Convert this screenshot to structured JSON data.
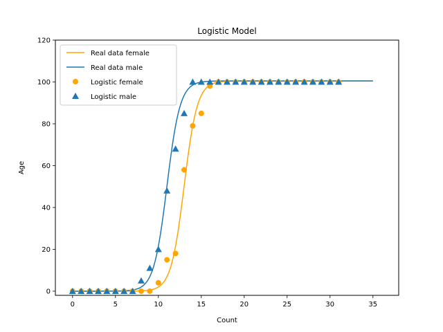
{
  "chart_data": {
    "type": "line+scatter",
    "title": "Logistic Model",
    "xlabel": "Count",
    "ylabel": "Age",
    "xlim": [
      -2,
      38
    ],
    "ylim": [
      -2,
      120
    ],
    "xticks": [
      0,
      5,
      10,
      15,
      20,
      25,
      30,
      35
    ],
    "yticks": [
      0,
      20,
      40,
      60,
      80,
      100,
      120
    ],
    "legend_position": "top-left",
    "colors": {
      "female": "#ffa500",
      "male": "#1f77b4",
      "axis": "#000000",
      "background": "#ffffff"
    },
    "curves": [
      {
        "name": "Real data female",
        "color": "#ffa500",
        "L": 100.5,
        "k": 1.3,
        "x0": 13.0,
        "x_range": [
          0,
          35
        ]
      },
      {
        "name": "Real data male",
        "color": "#1f77b4",
        "L": 100.5,
        "k": 1.3,
        "x0": 11.0,
        "x_range": [
          0,
          35
        ]
      }
    ],
    "scatter": [
      {
        "name": "Logistic female",
        "color": "#ffa500",
        "marker": "circle",
        "x": [
          0,
          1,
          2,
          3,
          4,
          5,
          6,
          7,
          8,
          9,
          10,
          11,
          12,
          13,
          14,
          15,
          16,
          17,
          18,
          19,
          20,
          21,
          22,
          23,
          24,
          25,
          26,
          27,
          28,
          29,
          30,
          31
        ],
        "y": [
          0,
          0,
          0,
          0,
          0,
          0,
          0,
          0,
          0,
          0,
          4,
          15,
          18,
          58,
          79,
          85,
          98,
          100,
          100,
          100,
          100,
          100,
          100,
          100,
          100,
          100,
          100,
          100,
          100,
          100,
          100,
          100
        ]
      },
      {
        "name": "Logistic male",
        "color": "#1f77b4",
        "marker": "triangle",
        "x": [
          0,
          1,
          2,
          3,
          4,
          5,
          6,
          7,
          8,
          9,
          10,
          11,
          12,
          13,
          14,
          15,
          16,
          17,
          18,
          19,
          20,
          21,
          22,
          23,
          24,
          25,
          26,
          27,
          28,
          29,
          30,
          31
        ],
        "y": [
          0,
          0,
          0,
          0,
          0,
          0,
          0,
          0,
          5,
          11,
          20,
          48,
          68,
          85,
          100,
          100,
          100,
          100,
          100,
          100,
          100,
          100,
          100,
          100,
          100,
          100,
          100,
          100,
          100,
          100,
          100,
          100
        ]
      }
    ]
  }
}
